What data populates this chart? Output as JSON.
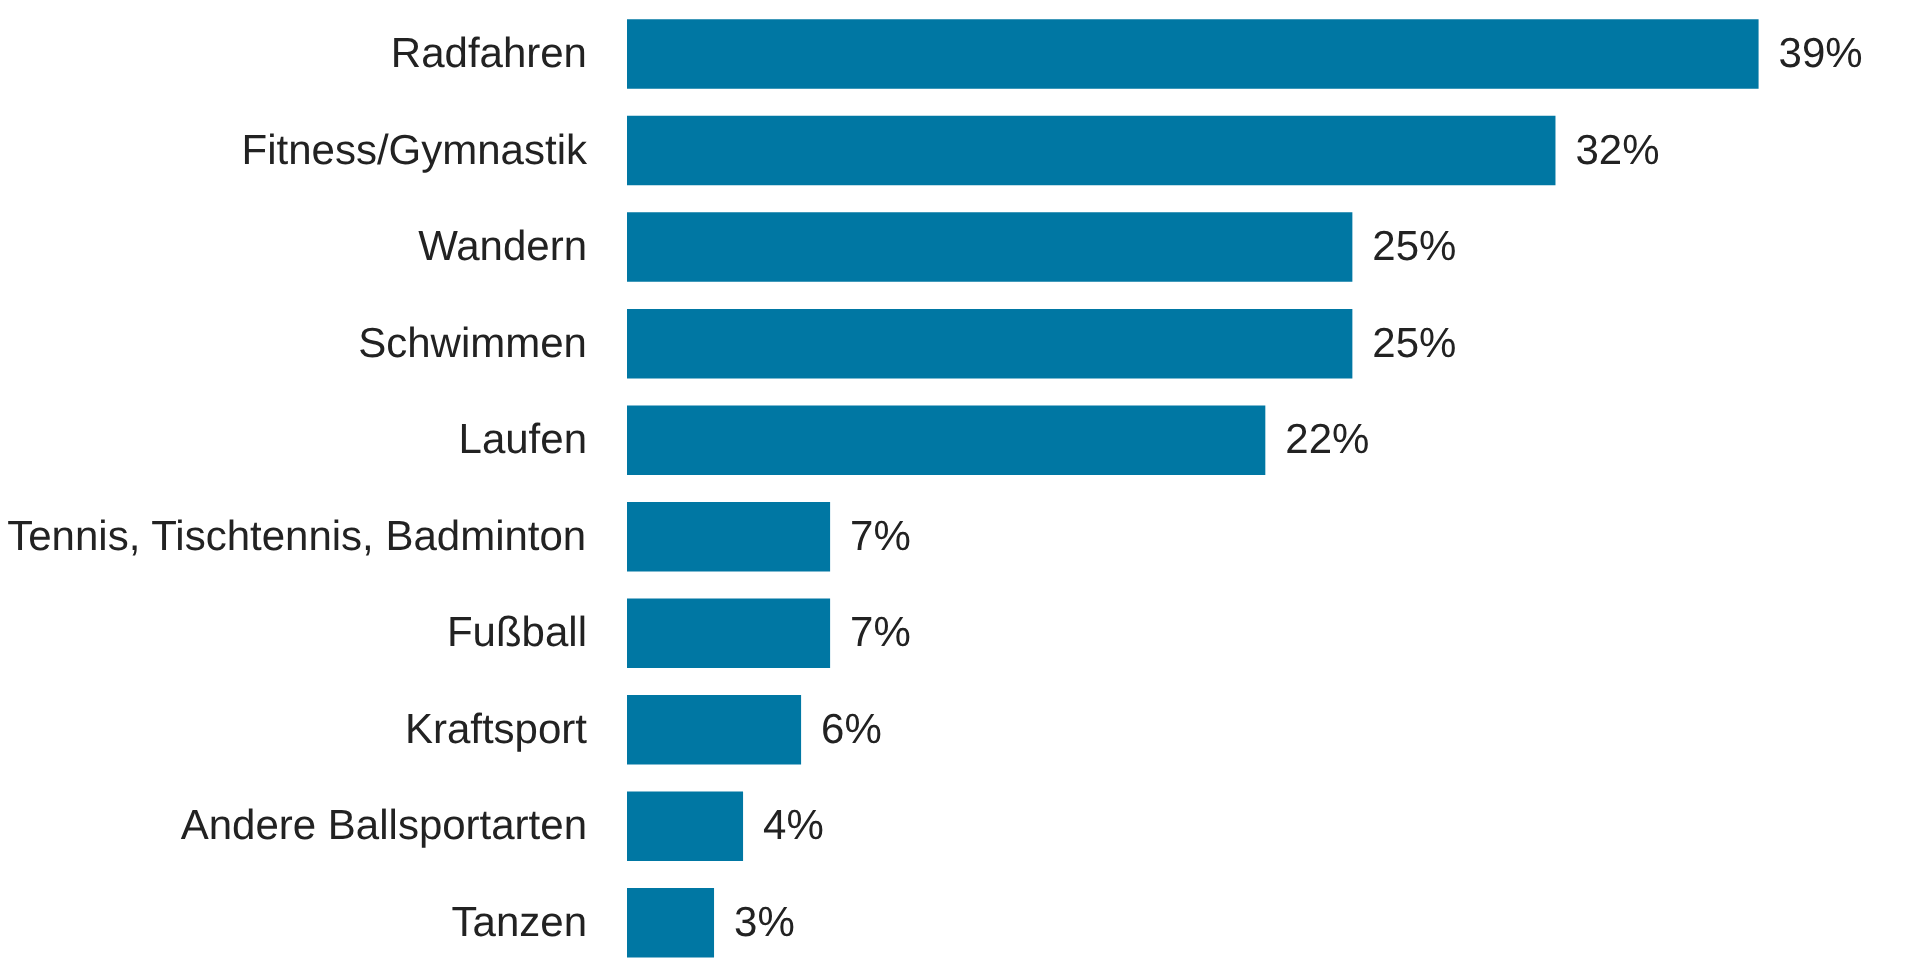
{
  "chart_data": {
    "type": "bar",
    "orientation": "horizontal",
    "categories": [
      "Radfahren",
      "Fitness/Gymnastik",
      "Wandern",
      "Schwimmen",
      "Laufen",
      "Tennis, Tischtennis, Badminton",
      "Fußball",
      "Kraftsport",
      "Andere Ballsportarten",
      "Tanzen"
    ],
    "values": [
      39,
      32,
      25,
      25,
      22,
      7,
      7,
      6,
      4,
      3
    ],
    "value_labels": [
      "39%",
      "32%",
      "25%",
      "25%",
      "22%",
      "7%",
      "7%",
      "6%",
      "4%",
      "3%"
    ],
    "color": "#0077a3"
  }
}
